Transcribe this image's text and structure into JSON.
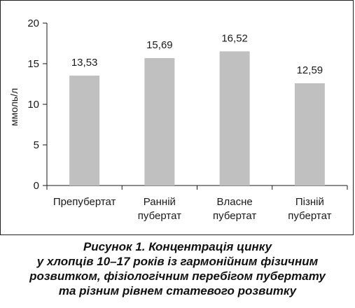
{
  "chart_data": {
    "type": "bar",
    "categories": [
      [
        "Препубертат"
      ],
      [
        "Ранній",
        "пубертат"
      ],
      [
        "Власне",
        "пубертат"
      ],
      [
        "Пізній",
        "пубертат"
      ]
    ],
    "values": [
      13.53,
      15.69,
      16.52,
      12.59
    ],
    "value_labels": [
      "13,53",
      "15,69",
      "16,52",
      "12,59"
    ],
    "ylabel": "ммоль/л",
    "ylim": [
      0,
      20
    ],
    "yticks": [
      0,
      5,
      10,
      15,
      20
    ],
    "grid": false,
    "bar_color": "#c0c0c0"
  },
  "caption": {
    "lines": [
      "Рисунок 1. Концентрація цинку",
      "у хлопців 10–17 років із гармонійним фізичним",
      "розвитком, фізіологічним перебігом пубертату",
      "та різним рівнем статевого розвитку"
    ]
  }
}
